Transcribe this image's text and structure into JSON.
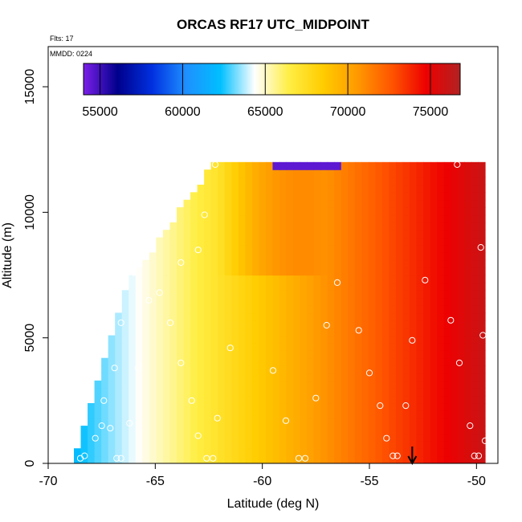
{
  "chart_data": {
    "type": "heatmap",
    "title": "ORCAS RF17 UTC_MIDPOINT",
    "subtitle_left": "Flts: 17",
    "mmdd_label": "MMDD: 0224",
    "xlabel": "Latitude (deg N)",
    "ylabel": "Altitude (m)",
    "xlim": [
      -70,
      -49
    ],
    "ylim": [
      0,
      16600
    ],
    "xticks": [
      -70,
      -65,
      -60,
      -55,
      -50
    ],
    "yticks": [
      0,
      5000,
      10000,
      15000
    ],
    "colorbar": {
      "min": 54000,
      "max": 76800,
      "ticks": [
        55000,
        60000,
        65000,
        70000,
        75000
      ],
      "colors": [
        "#7b1fe8",
        "#00008b",
        "#0030e0",
        "#1e90ff",
        "#00bfff",
        "#ffffff",
        "#ffee44",
        "#ffcc00",
        "#ff9900",
        "#ff5500",
        "#ee0000",
        "#b22222"
      ]
    },
    "field": {
      "description_lat_range": [
        -68.8,
        -49.6
      ],
      "alt_top": 12000,
      "value_south": 62000,
      "value_north": 76000
    },
    "points": [
      {
        "lat": -68.5,
        "alt": 200
      },
      {
        "lat": -68.3,
        "alt": 300
      },
      {
        "lat": -67.8,
        "alt": 1000
      },
      {
        "lat": -67.5,
        "alt": 1500
      },
      {
        "lat": -67.4,
        "alt": 2500
      },
      {
        "lat": -67.1,
        "alt": 1400
      },
      {
        "lat": -66.9,
        "alt": 3800
      },
      {
        "lat": -66.8,
        "alt": 200
      },
      {
        "lat": -66.6,
        "alt": 200
      },
      {
        "lat": -66.6,
        "alt": 5600
      },
      {
        "lat": -66.2,
        "alt": 1600
      },
      {
        "lat": -66.0,
        "alt": 7600
      },
      {
        "lat": -65.8,
        "alt": 3800
      },
      {
        "lat": -65.3,
        "alt": 6500
      },
      {
        "lat": -64.8,
        "alt": 6800
      },
      {
        "lat": -64.3,
        "alt": 5600
      },
      {
        "lat": -63.8,
        "alt": 4000
      },
      {
        "lat": -63.8,
        "alt": 8000
      },
      {
        "lat": -63.3,
        "alt": 2500
      },
      {
        "lat": -63.0,
        "alt": 8500
      },
      {
        "lat": -63.0,
        "alt": 1100
      },
      {
        "lat": -62.7,
        "alt": 9900
      },
      {
        "lat": -62.6,
        "alt": 200
      },
      {
        "lat": -62.3,
        "alt": 200
      },
      {
        "lat": -62.2,
        "alt": 11900
      },
      {
        "lat": -62.1,
        "alt": 1800
      },
      {
        "lat": -61.5,
        "alt": 4600
      },
      {
        "lat": -59.5,
        "alt": 3700
      },
      {
        "lat": -59.2,
        "alt": 12200
      },
      {
        "lat": -58.9,
        "alt": 1700
      },
      {
        "lat": -58.3,
        "alt": 200
      },
      {
        "lat": -58.0,
        "alt": 200
      },
      {
        "lat": -57.5,
        "alt": 2600
      },
      {
        "lat": -57.0,
        "alt": 5500
      },
      {
        "lat": -56.5,
        "alt": 7200
      },
      {
        "lat": -56.0,
        "alt": 12300
      },
      {
        "lat": -55.5,
        "alt": 5300
      },
      {
        "lat": -55.0,
        "alt": 3600
      },
      {
        "lat": -54.5,
        "alt": 2300
      },
      {
        "lat": -54.2,
        "alt": 1000
      },
      {
        "lat": -53.9,
        "alt": 300
      },
      {
        "lat": -53.7,
        "alt": 300
      },
      {
        "lat": -53.3,
        "alt": 2300
      },
      {
        "lat": -53.0,
        "alt": 4900
      },
      {
        "lat": -52.4,
        "alt": 7300
      },
      {
        "lat": -51.2,
        "alt": 5700
      },
      {
        "lat": -50.9,
        "alt": 11900
      },
      {
        "lat": -50.8,
        "alt": 4000
      },
      {
        "lat": -50.3,
        "alt": 1500
      },
      {
        "lat": -50.1,
        "alt": 300
      },
      {
        "lat": -49.9,
        "alt": 300
      },
      {
        "lat": -49.8,
        "alt": 8600
      },
      {
        "lat": -49.7,
        "alt": 5100
      },
      {
        "lat": -49.6,
        "alt": 900
      }
    ],
    "arrow_marker": {
      "lat": -53,
      "direction": "down"
    }
  }
}
